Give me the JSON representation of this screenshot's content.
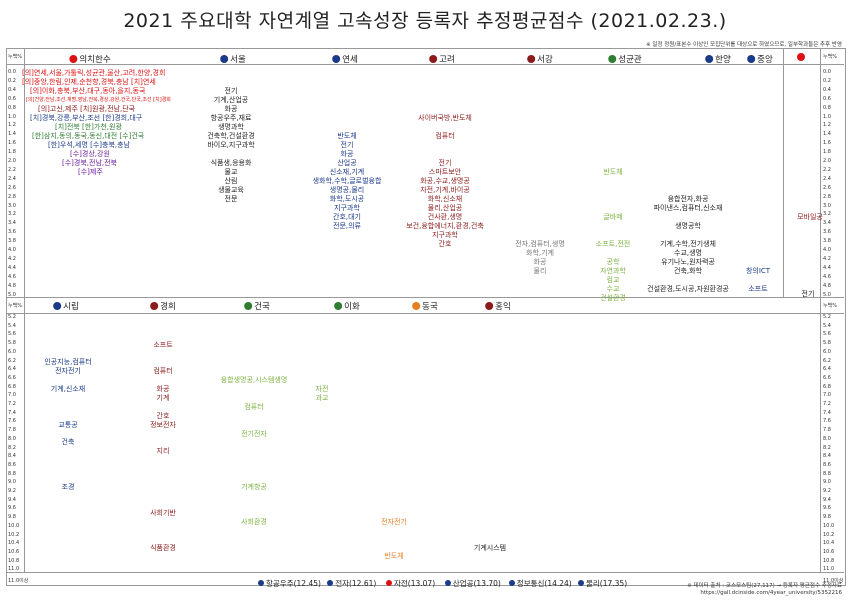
{
  "title": "2021 주요대학 자연계열 고속성장 등록자 추정평균점수 (2021.02.23.)",
  "note": "※ 일정 정원/표본수 이상인 모집단위를 대상으로 하였으므로, 일부학과들은 추후 반영",
  "scale_label": "누백%",
  "scale_top": [
    "0.0",
    "0.2",
    "0.4",
    "0.6",
    "0.8",
    "1.0",
    "1.2",
    "1.4",
    "1.6",
    "1.8",
    "2.0",
    "2.2",
    "2.4",
    "2.6",
    "2.8",
    "3.0",
    "3.2",
    "3.4",
    "3.6",
    "3.8",
    "4.0",
    "4.2",
    "4.4",
    "4.6",
    "4.8",
    "5.0"
  ],
  "scale_bottom": [
    "5.2",
    "5.4",
    "5.6",
    "5.8",
    "6.0",
    "6.2",
    "6.4",
    "6.6",
    "6.8",
    "7.0",
    "7.2",
    "7.4",
    "7.6",
    "7.8",
    "8.0",
    "8.2",
    "8.4",
    "8.6",
    "8.8",
    "9.0",
    "9.2",
    "9.4",
    "9.6",
    "9.8",
    "10.0",
    "10.2",
    "10.4",
    "10.6",
    "10.8",
    "11.0"
  ],
  "scale_bottom_end": "11.0이상",
  "top_headers": [
    {
      "label": "의치한수",
      "color": "#d11"
    },
    {
      "label": "서울",
      "color": "#1a3a8a"
    },
    {
      "label": "연세",
      "color": "#1a3a8a"
    },
    {
      "label": "고려",
      "color": "#8b1a1a"
    },
    {
      "label": "서강",
      "color": "#8b1a1a"
    },
    {
      "label": "성균관",
      "color": "#2e7d32"
    },
    {
      "label": "한양",
      "color": "#1a3a8a"
    },
    {
      "label": "중앙",
      "color": "#1a3a8a"
    },
    {
      "label": "",
      "color": "#d11"
    }
  ],
  "bottom_headers": [
    {
      "label": "시립",
      "color": "#1a3a8a"
    },
    {
      "label": "경희",
      "color": "#8b1a1a"
    },
    {
      "label": "건국",
      "color": "#2e7d32"
    },
    {
      "label": "이화",
      "color": "#2e7d32"
    },
    {
      "label": "동국",
      "color": "#e67e22"
    },
    {
      "label": "홍익",
      "color": "#8b1a1a"
    }
  ],
  "med": [
    {
      "text": "[의]연세,서울,가톨릭,성균관,울산,고려,한양,경희",
      "color": "#d11"
    },
    {
      "text": "[의]중앙,한림,인제,순천향,경북,충남 [치]연세",
      "color": "#d11"
    },
    {
      "text": "[의]이화,충북,부산,대구,동아,을지,동국",
      "color": "#d11"
    },
    {
      "text": "[의]건양,전남,조선,계명,영남,전북,경상,강원,건국,단국,조선 [치]경희",
      "color": "#d11"
    },
    {
      "text": "[의]고신,제주 [치]원광,전남,단국",
      "color": "#8b1a1a"
    },
    {
      "text": "[치]경북,강릉,부산,조선 [한]경희,대구",
      "color": "#1a3a8a"
    },
    {
      "text": "[치]전북 [한]가천,원광",
      "color": "#2e7d32"
    },
    {
      "text": "[한]삼지,동의,동국,동신,대전 [수]건국",
      "color": "#2e7d32"
    },
    {
      "text": "[한]우석,세명 [수]충북,충남",
      "color": "#1a3a8a"
    },
    {
      "text": "[수]경상,강원",
      "color": "#6a1b9a"
    },
    {
      "text": "[수]경북,전남,전북",
      "color": "#6a1b9a"
    },
    {
      "text": "[수]제주",
      "color": "#6a1b9a"
    }
  ],
  "seoul": [
    "전기",
    "기계,산업공",
    "화공",
    "항공우주,재료",
    "생명과학",
    "건축학,건설환경",
    "바이오,지구과학",
    "식품생,응용화",
    "물교",
    "산림",
    "생물교육",
    "전문"
  ],
  "yonsei": [
    "반도체",
    "전기",
    "화공",
    "산업공",
    "신소재,기계",
    "생화학,수학,글로벌융합",
    "생명공,물리",
    "화학,도시공",
    "지구과학",
    "간호,대기",
    "전문,의류"
  ],
  "korea": [
    "사이버국방,반도체",
    "컴퓨터",
    "전기",
    "스마트보안",
    "화공,수교,생명공",
    "자전,기계,바이공",
    "화학,신소재",
    "물리,산업공",
    "건사환,생명",
    "보건,융합에너지,환경,건축",
    "지구과학",
    "간호"
  ],
  "sogang": [
    "전자,컴퓨터,생명",
    "화학,기계",
    "화공",
    "물리"
  ],
  "skku": [
    "반도체",
    "글바메",
    "소프트,전전",
    "공학",
    "자연과학",
    "컴교",
    "수교",
    "건설환경"
  ],
  "hanyang": [
    "융합전자,화공",
    "파이낸스,컴퓨터,신소재",
    "생명공학",
    "기계,수학,전기생체",
    "수교,생명",
    "유기나노,원자력공",
    "건축,화학",
    "건설환경,도시공,자원환경공"
  ],
  "chungang": [
    "창의ICT",
    "소프트"
  ],
  "extra": [
    "모바일공",
    "전기"
  ],
  "uos": [
    "인공지능,컴퓨터",
    "전자전기",
    "기계,신소재",
    "교통공",
    "건축",
    "조경"
  ],
  "khu": [
    "소프트",
    "컴퓨터",
    "화공",
    "기계",
    "간호",
    "정보전자",
    "지리",
    "사회기반",
    "식품환경"
  ],
  "konkuk": [
    "융합생명공,시스템생명",
    "컴퓨터",
    "전기전자",
    "기계항공",
    "사회환경"
  ],
  "ewha": [
    "자전",
    "과교"
  ],
  "dongguk": [
    "전자전기",
    "반도체"
  ],
  "hongik": [
    "기계시스템"
  ],
  "footer_items": [
    {
      "label": "항공우주(12.45)",
      "color": "#1a3a8a"
    },
    {
      "label": "전자(12.61)",
      "color": "#1a3a8a"
    },
    {
      "label": "자전(13.07)",
      "color": "#d11"
    },
    {
      "label": "산업공(13.70)",
      "color": "#1a3a8a"
    },
    {
      "label": "정보통신(14.24)",
      "color": "#1a3a8a"
    },
    {
      "label": "물리(17.35)",
      "color": "#1a3a8a"
    }
  ],
  "source_line1": "※ 데이터 출처 : 코스모스팀(27,117) → 등록자 평균점수 추정자료",
  "source_line2": "https://gall.dcinside.com/4year_university/5352216"
}
